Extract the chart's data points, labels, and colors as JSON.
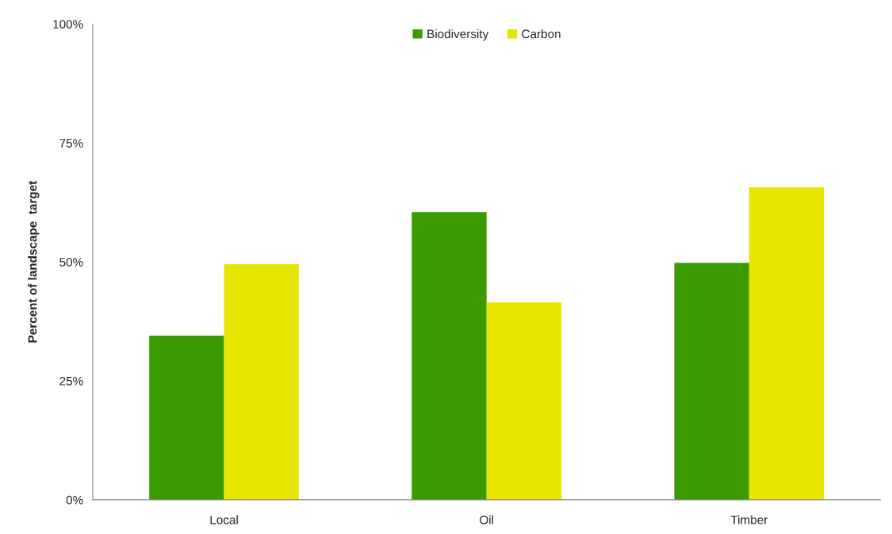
{
  "chart_data": {
    "type": "bar",
    "ylabel": "Percent of landscape  target",
    "categories": [
      "Local",
      "Oil",
      "Timber"
    ],
    "series": [
      {
        "name": "Biodiversity",
        "color": "#3a9b00",
        "values": [
          34.5,
          60.5,
          49.8
        ]
      },
      {
        "name": "Carbon",
        "color": "#e6e600",
        "values": [
          49.5,
          41.5,
          65.7
        ]
      }
    ],
    "ylim": [
      0,
      100
    ],
    "yticks": [
      {
        "value": 0,
        "label": "0%"
      },
      {
        "value": 25,
        "label": "25%"
      },
      {
        "value": 50,
        "label": "50%"
      },
      {
        "value": 75,
        "label": "75%"
      },
      {
        "value": 100,
        "label": "100%"
      }
    ],
    "grid": false,
    "legend": "top"
  }
}
